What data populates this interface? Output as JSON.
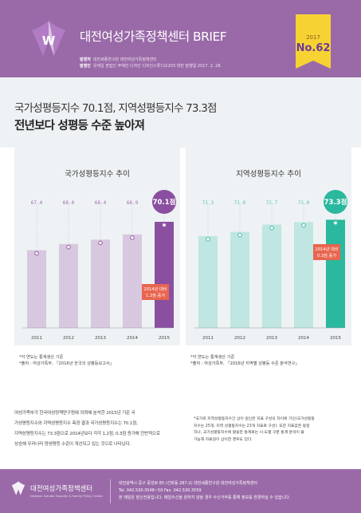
{
  "header": {
    "title": "대전여성가족정책센터 BRIEF",
    "issue_year": "2017",
    "issue_no": "No.62",
    "meta_line1_label": "발행처",
    "meta_line1_text": "대전세종연구원 대전여성가족정책센터",
    "meta_line2_label": "발행인",
    "meta_line2_text": "유재일   편집인 주혜진   디자인 디자인스튜디오203 대전   발행일 2017. 2. 28.",
    "colors": {
      "purple": "#9a6aa8",
      "yellow": "#f7d233",
      "dark_purple": "#6b3a9a"
    }
  },
  "headline": {
    "line1": "국가성평등지수 70.1점, 지역성평등지수 73.3점",
    "line2": "전년보다 성평등 수준 높아져"
  },
  "chart_data": [
    {
      "type": "bar",
      "title": "국가성평등지수 추이",
      "categories": [
        "2011",
        "2012",
        "2013",
        "2014",
        "2015"
      ],
      "values": [
        67.4,
        68.0,
        68.4,
        68.9,
        70.1
      ],
      "value_labels": [
        "67.4",
        "68.0",
        "68.4",
        "68.9",
        "70.1점"
      ],
      "ylim": [
        60,
        72
      ],
      "annotation": "2014년 대비 1.2점 증가",
      "colors": {
        "bar": "#d8c8df",
        "highlight": "#8a4fa0",
        "dot": "#a070b0",
        "callout": "#e8654f"
      },
      "source_line1": "*각 연도는 통계생산 기준",
      "source_line2": "*출처 : 여성가족부, 「2016년 한국의 성평등보고서」"
    },
    {
      "type": "bar",
      "title": "지역성평등지수 추이",
      "categories": [
        "2011",
        "2012",
        "2013",
        "2014",
        "2015"
      ],
      "values": [
        71.3,
        71.8,
        72.7,
        73.0,
        73.3
      ],
      "value_labels": [
        "71.3",
        "71.8",
        "72.7",
        "73.0",
        "73.3점"
      ],
      "ylim": [
        60,
        75.5
      ],
      "annotation": "2014년 대비 0.3점 증가",
      "colors": {
        "bar": "#bfe6e0",
        "highlight": "#2ab89e",
        "dot": "#5cc4b2",
        "callout": "#e8654f"
      },
      "source_line1": "*각 연도는 통계생산 기준",
      "source_line2": "*출처 : 여성가족부, 「2016년 지역별 성평등 수준 분석연구」"
    }
  ],
  "body": {
    "lines": [
      "여성가족부가 한국여성정책연구원에 의뢰해 분석한 2015년 기준 국",
      "가성평등지수와 지역성평등지수 측정 결과 국가성평등지수는 70.1점,",
      "지역성평등지수는 73.3점으로 2014년보다 각각 1.2점, 0.3점 증가해 전반적으로",
      "상승해 우리나라 양성평등 수준이 개선되고 있는 것으로 나타났다."
    ],
    "note_lines": [
      "*국가와 지역성평등지수간 상이 원인은 지표 구성의 차이에 기인(국가성평등",
      "지수는 25개, 지역 성평등지수는 23개 지표로 구성). 또한 지표값은 동일",
      "하나, 국가성평등지수에 활용한 통계로는 시·도별 구분 통계 분석이 불",
      "가능해 자료원이 상이한 경우도 있다."
    ]
  },
  "footer": {
    "org_name": "대전여성가족정책센터",
    "org_eng": "Daejeon Gender Equality & Family Policy Center",
    "address": "대전광역시 중구 중앙로 85 (선화동 287-2) 대전세종연구원 대전여성가족정책센터",
    "contact": "Tel. 042.530.3548~50  Fax. 042.530.3559",
    "notice": "본 메일은 발신전용입니다. 메일수신을 원하지 않을 경우 수신거부를 통해 정보를 변경하실 수 있습니다."
  }
}
